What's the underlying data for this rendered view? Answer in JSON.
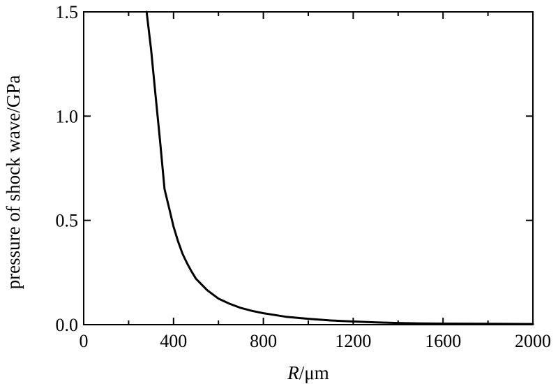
{
  "chart_data": {
    "type": "line",
    "title": "",
    "xlabel_italic": "R",
    "xlabel_rest": "/μm",
    "ylabel": "pressure of shock wave/GPa",
    "xlim": [
      0,
      2000
    ],
    "ylim": [
      0,
      1.5
    ],
    "x_major_ticks": [
      0,
      400,
      800,
      1200,
      1600,
      2000
    ],
    "x_minor_ticks": [
      200,
      600,
      1000,
      1400,
      1800
    ],
    "y_major_ticks": [
      0.0,
      0.5,
      1.0,
      1.5
    ],
    "x_tick_labels": [
      "0",
      "400",
      "800",
      "1200",
      "1600",
      "2000"
    ],
    "y_tick_labels": [
      "0.0",
      "0.5",
      "1.0",
      "1.5"
    ],
    "grid": false,
    "series": [
      {
        "x": [
          280,
          300,
          320,
          340,
          360,
          380,
          400,
          420,
          440,
          460,
          480,
          500,
          550,
          600,
          650,
          700,
          750,
          800,
          900,
          1000,
          1100,
          1200,
          1300,
          1400,
          1500,
          1600,
          1800,
          2000
        ],
        "y": [
          1.5,
          1.32,
          1.1,
          0.88,
          0.65,
          0.56,
          0.47,
          0.4,
          0.34,
          0.295,
          0.255,
          0.22,
          0.165,
          0.125,
          0.1,
          0.08,
          0.066,
          0.055,
          0.038,
          0.028,
          0.02,
          0.015,
          0.011,
          0.008,
          0.006,
          0.005,
          0.004,
          0.003
        ]
      }
    ]
  }
}
